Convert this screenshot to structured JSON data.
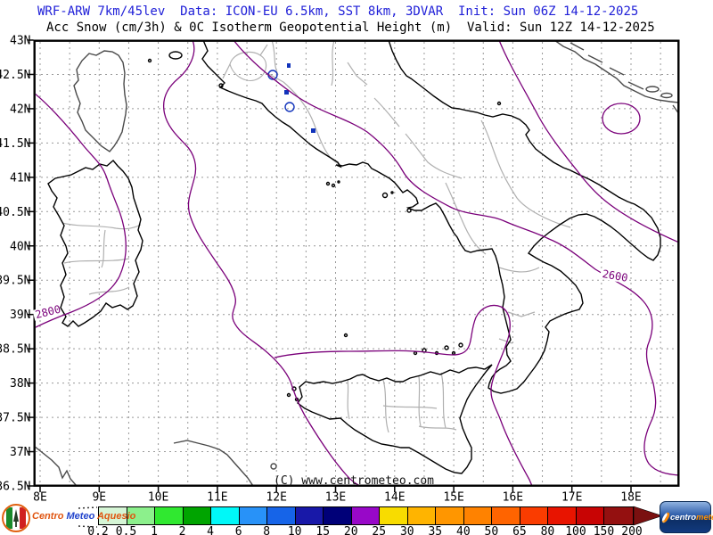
{
  "header": {
    "line1": "WRF-ARW 7km/45lev  Data: ICON-EU 6.5km, SST 8km, 3DVAR  Init: Sun 06Z 14-12-2025",
    "line2": "Acc Snow (cm/3h) & 0C Isotherm Geopotential Height (m)  Valid: Sun 12Z 14-12-2025",
    "title_color": "#2020d8"
  },
  "map": {
    "lat_labels": [
      "43N",
      "42.5N",
      "42N",
      "41.5N",
      "41N",
      "40.5N",
      "40N",
      "39.5N",
      "39N",
      "38.5N",
      "38N",
      "37.5N",
      "37N",
      "36.5N"
    ],
    "lon_labels": [
      "8E",
      "9E",
      "10E",
      "11E",
      "12E",
      "13E",
      "14E",
      "15E",
      "16E",
      "17E",
      "18E"
    ],
    "contour_labels": [
      {
        "text": "2800"
      },
      {
        "text": "2600"
      }
    ],
    "copyright": "(C) www.centrometeo.com",
    "colors": {
      "contour_purple": "#7a007a",
      "italy_coast": "#000000",
      "foreign_coast": "#4a4a4a",
      "region_borders": "#b0b0b0",
      "gridlines": "#999999",
      "snow_contour_blue": "#1133bb"
    }
  },
  "colorbar": {
    "values": [
      "0.2",
      "0.5",
      "1",
      "2",
      "4",
      "6",
      "8",
      "10",
      "15",
      "20",
      "25",
      "30",
      "35",
      "40",
      "50",
      "65",
      "80",
      "100",
      "150",
      "200"
    ],
    "colors": [
      "#d5f5d5",
      "#8cf08c",
      "#30e830",
      "#00a400",
      "#00f8f8",
      "#2892f8",
      "#1664e8",
      "#1818a8",
      "#000078",
      "#9808c8",
      "#f8dc00",
      "#ffb400",
      "#ff9600",
      "#ff8200",
      "#ff6400",
      "#fa3c00",
      "#e81400",
      "#c80404",
      "#941010"
    ],
    "arrow_color": "#7a1010"
  },
  "logos": {
    "left": {
      "word1": "Centro",
      "word2": "Meteo",
      "word3": "Aquesio"
    },
    "right": {
      "word1": "centro",
      "word2": "meteo"
    }
  }
}
